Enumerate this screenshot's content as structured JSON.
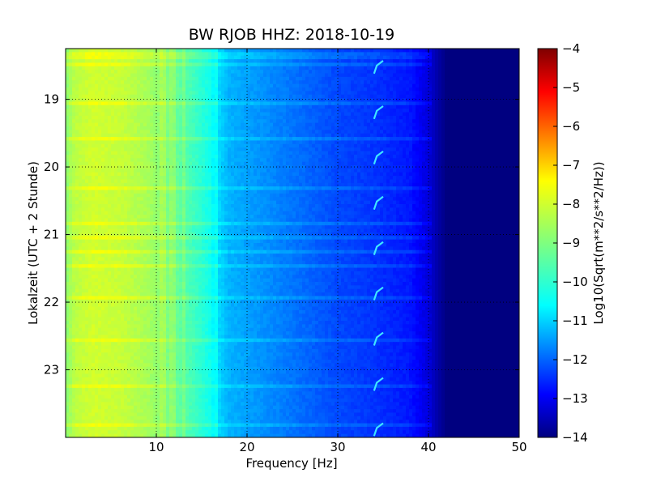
{
  "chart_data": {
    "type": "heatmap",
    "title": "BW RJOB HHZ: 2018-10-19",
    "xlabel": "Frequency [Hz]",
    "ylabel": "Lokalzeit (UTC + 2 Stunde)",
    "xlim": [
      0,
      50
    ],
    "ylim_hours": [
      18.25,
      24.0
    ],
    "y_inverted": true,
    "x_ticks": [
      10,
      20,
      30,
      40,
      50
    ],
    "x_tick_labels": [
      "10",
      "20",
      "30",
      "40",
      "50"
    ],
    "y_ticks": [
      19,
      20,
      21,
      22,
      23
    ],
    "y_tick_labels": [
      "19",
      "20",
      "21",
      "22",
      "23"
    ],
    "grid": true,
    "colormap": "jet",
    "colorbar": {
      "label": "Log10(Sqrt(m**2/s**2/Hz))",
      "range": [
        -14,
        -4
      ],
      "ticks": [
        -4,
        -5,
        -6,
        -7,
        -8,
        -9,
        -10,
        -11,
        -12,
        -13,
        -14
      ],
      "tick_labels": [
        "−4",
        "−5",
        "−6",
        "−7",
        "−8",
        "−9",
        "−10",
        "−11",
        "−12",
        "−13",
        "−14"
      ]
    },
    "spectrum_profile": {
      "frequency_hz": [
        0,
        1,
        3,
        6,
        9,
        12,
        14,
        16,
        16.8,
        18,
        22,
        26,
        30,
        33,
        36,
        38,
        40,
        41,
        42,
        50
      ],
      "log10_asd": [
        -8.9,
        -8.4,
        -8.2,
        -8.3,
        -8.6,
        -9.2,
        -9.6,
        -10.1,
        -10.6,
        -11.0,
        -11.35,
        -11.7,
        -12.05,
        -12.2,
        -12.4,
        -12.55,
        -13.1,
        -13.6,
        -14.0,
        -14.0
      ]
    },
    "line_features_hz": [
      10.0,
      10.5,
      11.0,
      11.5,
      12.0,
      12.5,
      13.0,
      16.6
    ],
    "bright_time_bands_hours": [
      18.35,
      18.5,
      19.05,
      19.6,
      20.3,
      20.85,
      21.05,
      21.25,
      21.45,
      21.95,
      22.55,
      23.25,
      23.8
    ],
    "tonal_feature": {
      "frequency_hz": [
        34,
        35
      ],
      "approx_period_hours": 0.67
    }
  }
}
